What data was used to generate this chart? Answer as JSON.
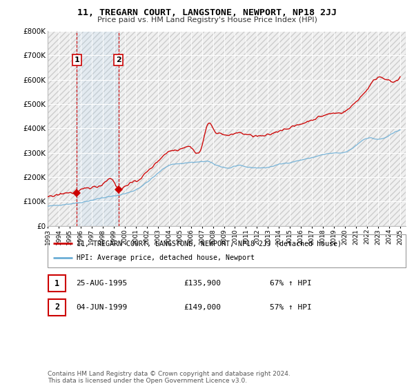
{
  "title": "11, TREGARN COURT, LANGSTONE, NEWPORT, NP18 2JJ",
  "subtitle": "Price paid vs. HM Land Registry's House Price Index (HPI)",
  "legend_line1": "11, TREGARN COURT, LANGSTONE, NEWPORT, NP18 2JJ (detached house)",
  "legend_line2": "HPI: Average price, detached house, Newport",
  "footnote": "Contains HM Land Registry data © Crown copyright and database right 2024.\nThis data is licensed under the Open Government Licence v3.0.",
  "sale1_date_str": "25-AUG-1995",
  "sale1_price_str": "£135,900",
  "sale1_hpi_str": "67% ↑ HPI",
  "sale2_date_str": "04-JUN-1999",
  "sale2_price_str": "£149,000",
  "sale2_hpi_str": "57% ↑ HPI",
  "hpi_color": "#6baed6",
  "price_color": "#cc0000",
  "sale1_year": 1995.65,
  "sale1_price": 135900,
  "sale2_year": 1999.42,
  "sale2_price": 149000,
  "ylim": [
    0,
    800000
  ],
  "yticks": [
    0,
    100000,
    200000,
    300000,
    400000,
    500000,
    600000,
    700000,
    800000
  ],
  "ytick_labels": [
    "£0",
    "£100K",
    "£200K",
    "£300K",
    "£400K",
    "£500K",
    "£600K",
    "£700K",
    "£800K"
  ],
  "xstart": 1993,
  "xend": 2025.5
}
